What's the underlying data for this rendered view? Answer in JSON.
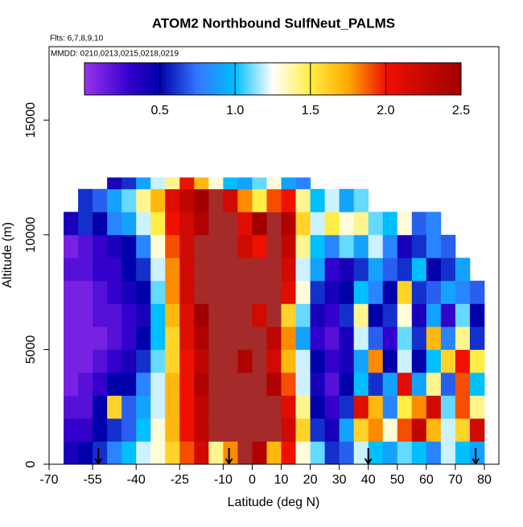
{
  "chart_data": {
    "type": "heatmap",
    "title": "ATOM2 Northbound SulfNeut_PALMS",
    "subtitle": "Flts: 6,7,8,9,10",
    "annotation": "MMDD: 0210,0213,0215,0218,0219",
    "xlabel": "Latitude (deg N)",
    "ylabel": "Altitude (m)",
    "xlim": [
      -70,
      85
    ],
    "ylim": [
      0,
      18200
    ],
    "xticks": [
      -70,
      -55,
      -40,
      -25,
      -10,
      0,
      10,
      20,
      30,
      40,
      50,
      60,
      70,
      80
    ],
    "yticks": [
      0,
      5000,
      10000,
      15000
    ],
    "xbins": [
      -65,
      -60,
      -55,
      -50,
      -45,
      -40,
      -35,
      -30,
      -25,
      -20,
      -15,
      -10,
      -5,
      0,
      5,
      10,
      15,
      20,
      25,
      30,
      35,
      40,
      45,
      50,
      55,
      60,
      65,
      70,
      75,
      80
    ],
    "ybins": [
      0,
      1000,
      2000,
      3000,
      4000,
      5000,
      6000,
      7000,
      8000,
      9000,
      10000,
      11000,
      12000,
      12500
    ],
    "z": [
      [
        0.4,
        0.5,
        0.6,
        0.8,
        1.0,
        1.2,
        1.3,
        1.6,
        1.9,
        2.2,
        1.4,
        1.8,
        2.6,
        2.4,
        1.7,
        2.0,
        1.3,
        1.1,
        0.6,
        0.7,
        1.2,
        1.0,
        0.9,
        1.1,
        1.0,
        0.8,
        1.2,
        1.0,
        0.9
      ],
      [
        0.3,
        0.3,
        0.5,
        0.6,
        0.7,
        1.0,
        1.3,
        1.7,
        2.0,
        2.3,
        2.7,
        2.8,
        2.8,
        2.8,
        2.6,
        2.2,
        1.6,
        0.6,
        0.4,
        0.9,
        1.6,
        1.8,
        1.3,
        1.9,
        2.3,
        1.7,
        1.2,
        1.6,
        2.2
      ],
      [
        0.2,
        0.2,
        0.5,
        1.6,
        0.7,
        0.9,
        1.2,
        1.7,
        2.0,
        2.3,
        2.7,
        2.8,
        2.8,
        2.8,
        2.8,
        2.1,
        1.4,
        0.5,
        0.3,
        0.6,
        2.1,
        1.7,
        0.8,
        1.5,
        1.8,
        2.2,
        1.1,
        1.9,
        1.4
      ],
      [
        0.1,
        0.2,
        0.3,
        0.5,
        0.5,
        0.8,
        1.2,
        1.7,
        2.0,
        2.4,
        2.7,
        2.8,
        2.8,
        2.6,
        2.4,
        1.9,
        1.2,
        0.4,
        0.2,
        0.5,
        1.0,
        0.6,
        0.9,
        2.1,
        0.9,
        1.4,
        0.7,
        1.9,
        1.0
      ],
      [
        0.1,
        0.1,
        0.2,
        0.3,
        0.4,
        0.6,
        1.1,
        1.6,
        2.0,
        2.3,
        2.6,
        2.8,
        2.4,
        2.8,
        2.2,
        1.7,
        1.2,
        0.5,
        0.3,
        0.4,
        0.9,
        1.8,
        0.5,
        1.2,
        0.5,
        1.0,
        1.6,
        2.0,
        1.5
      ],
      [
        0.1,
        0.1,
        0.1,
        0.2,
        0.3,
        0.5,
        1.0,
        1.6,
        2.1,
        2.4,
        2.7,
        2.8,
        2.7,
        2.8,
        2.3,
        1.8,
        0.9,
        0.3,
        0.2,
        0.4,
        1.2,
        0.7,
        0.3,
        1.1,
        0.6,
        1.7,
        0.8,
        1.4,
        0.6
      ],
      [
        0.1,
        0.1,
        0.2,
        0.2,
        0.3,
        0.4,
        1.0,
        1.7,
        2.1,
        2.5,
        2.8,
        2.8,
        2.7,
        2.2,
        2.8,
        1.6,
        1.1,
        0.4,
        0.3,
        0.6,
        1.4,
        0.5,
        0.6,
        1.3,
        0.4,
        0.9,
        0.3,
        1.1,
        0.5
      ],
      [
        0.1,
        0.1,
        0.2,
        0.3,
        0.4,
        0.5,
        1.1,
        1.8,
        2.2,
        2.6,
        2.8,
        2.8,
        2.8,
        2.8,
        2.8,
        2.1,
        1.3,
        0.6,
        0.4,
        0.5,
        1.0,
        0.8,
        0.5,
        1.6,
        0.6,
        0.7,
        0.9,
        0.8,
        0.7
      ],
      [
        0.2,
        0.2,
        0.3,
        0.3,
        0.5,
        0.6,
        1.2,
        1.8,
        2.2,
        2.6,
        2.8,
        2.8,
        2.8,
        2.8,
        2.8,
        2.2,
        1.2,
        0.9,
        0.3,
        0.4,
        0.6,
        0.9,
        0.7,
        0.6,
        1.0,
        0.5,
        0.6,
        0.9,
        null
      ],
      [
        0.1,
        0.2,
        0.3,
        0.4,
        0.5,
        0.8,
        1.3,
        1.9,
        2.2,
        2.6,
        2.8,
        2.8,
        2.2,
        2.0,
        2.8,
        2.3,
        1.4,
        1.0,
        0.8,
        1.1,
        0.9,
        1.2,
        0.8,
        0.4,
        0.6,
        0.8,
        0.7,
        null,
        null
      ],
      [
        0.4,
        0.6,
        0.5,
        0.8,
        0.9,
        1.2,
        1.5,
        2.0,
        2.2,
        2.4,
        2.8,
        2.8,
        2.1,
        2.5,
        2.8,
        2.4,
        1.6,
        1.2,
        1.5,
        1.3,
        1.4,
        1.1,
        1.0,
        1.3,
        0.7,
        0.8,
        null,
        null,
        null
      ],
      [
        null,
        0.6,
        0.7,
        0.9,
        1.1,
        1.4,
        1.7,
        2.1,
        2.3,
        2.5,
        2.6,
        2.2,
        1.8,
        1.5,
        1.9,
        2.0,
        1.4,
        1.0,
        1.2,
        0.9,
        1.1,
        null,
        null,
        null,
        null,
        null,
        null,
        null,
        null
      ],
      [
        null,
        null,
        null,
        0.4,
        0.6,
        0.9,
        1.2,
        1.4,
        2.0,
        1.7,
        1.3,
        1.0,
        0.9,
        1.1,
        1.3,
        0.9,
        0.8,
        null,
        null,
        null,
        null,
        null,
        null,
        null,
        null,
        null,
        null,
        null,
        null
      ]
    ],
    "clim": [
      0,
      2.5
    ],
    "cticks": [
      0.5,
      {
        "value": 1,
        "label": "1.0"
      },
      1.5,
      {
        "value": 2,
        "label": "2.0"
      },
      2.5
    ],
    "colorscale": [
      {
        "value": 0,
        "color": "#9933ee"
      },
      {
        "value": 0.3,
        "color": "#3300cc"
      },
      {
        "value": 0.5,
        "color": "#0000aa"
      },
      {
        "value": 0.75,
        "color": "#3377ff"
      },
      {
        "value": 1,
        "color": "#00bfff"
      },
      {
        "value": 1.25,
        "color": "#ffffff"
      },
      {
        "value": 1.5,
        "color": "#ffee44"
      },
      {
        "value": 1.75,
        "color": "#ffaa00"
      },
      {
        "value": 2,
        "color": "#ee1100"
      },
      {
        "value": 2.5,
        "color": "#a00000"
      }
    ],
    "over_color": "#a52a2a",
    "arrow_lats": [
      -53,
      -8,
      40,
      77
    ]
  }
}
